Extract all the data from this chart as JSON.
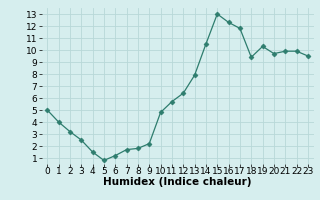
{
  "x": [
    0,
    1,
    2,
    3,
    4,
    5,
    6,
    7,
    8,
    9,
    10,
    11,
    12,
    13,
    14,
    15,
    16,
    17,
    18,
    19,
    20,
    21,
    22,
    23
  ],
  "y": [
    5.0,
    4.0,
    3.2,
    2.5,
    1.5,
    0.8,
    1.2,
    1.7,
    1.8,
    2.2,
    4.8,
    5.7,
    6.4,
    7.9,
    10.5,
    13.0,
    12.3,
    11.8,
    9.4,
    10.3,
    9.7,
    9.9,
    9.9,
    9.5
  ],
  "line_color": "#2e7d6e",
  "marker": "D",
  "marker_size": 2.5,
  "bg_color": "#d6eeee",
  "grid_color": "#b8d8d8",
  "xlabel": "Humidex (Indice chaleur)",
  "xlim": [
    -0.5,
    23.5
  ],
  "ylim": [
    0.5,
    13.5
  ],
  "yticks": [
    1,
    2,
    3,
    4,
    5,
    6,
    7,
    8,
    9,
    10,
    11,
    12,
    13
  ],
  "xticks": [
    0,
    1,
    2,
    3,
    4,
    5,
    6,
    7,
    8,
    9,
    10,
    11,
    12,
    13,
    14,
    15,
    16,
    17,
    18,
    19,
    20,
    21,
    22,
    23
  ],
  "xlabel_fontsize": 7.5,
  "tick_fontsize": 6.5
}
